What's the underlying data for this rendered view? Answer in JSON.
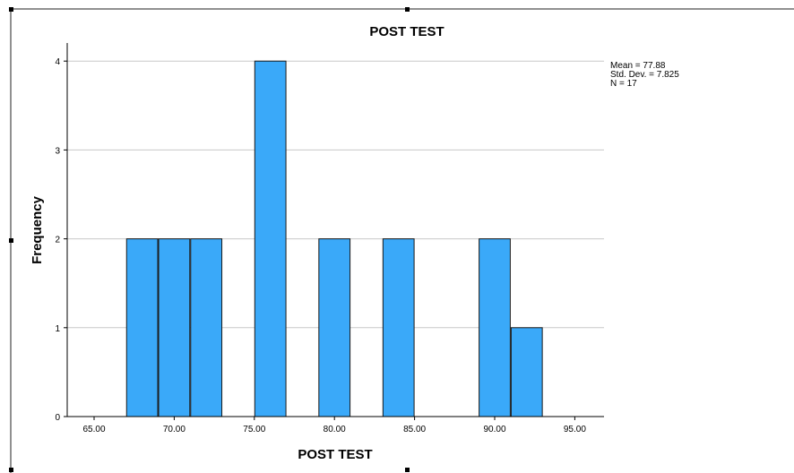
{
  "chart_data": {
    "type": "bar",
    "title": "POST TEST",
    "xlabel": "POST TEST",
    "ylabel": "Frequency",
    "bins": [
      {
        "x0": 67.0,
        "x1": 69.0,
        "value": 2
      },
      {
        "x0": 69.0,
        "x1": 71.0,
        "value": 2
      },
      {
        "x0": 71.0,
        "x1": 73.0,
        "value": 2
      },
      {
        "x0": 75.0,
        "x1": 77.0,
        "value": 4
      },
      {
        "x0": 79.0,
        "x1": 81.0,
        "value": 2
      },
      {
        "x0": 83.0,
        "x1": 85.0,
        "value": 2
      },
      {
        "x0": 89.0,
        "x1": 91.0,
        "value": 2
      },
      {
        "x0": 91.0,
        "x1": 93.0,
        "value": 1
      }
    ],
    "xlim": [
      63.5,
      96.8
    ],
    "ylim": [
      0,
      4.2
    ],
    "x_ticks": [
      "65.00",
      "70.00",
      "75.00",
      "80.00",
      "85.00",
      "90.00",
      "95.00"
    ],
    "y_ticks": [
      "0",
      "1",
      "2",
      "3",
      "4"
    ],
    "grid": "horizontal",
    "stats": [
      "Mean = 77.88",
      "Std. Dev. = 7.825",
      "N = 17"
    ],
    "bar_color": "#3aa9f9",
    "bar_edge_color": "#1a1a1a",
    "grid_color": "#c8c8c8"
  }
}
